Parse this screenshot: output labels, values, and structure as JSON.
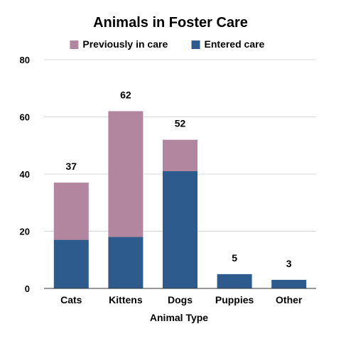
{
  "chart_data": {
    "type": "bar",
    "stacked": true,
    "title": "Animals in Foster Care",
    "xlabel": "Animal Type",
    "ylabel": "",
    "ylim": [
      0,
      80
    ],
    "yticks": [
      0,
      20,
      40,
      60,
      80
    ],
    "grid": true,
    "legend_position": "top",
    "categories": [
      "Cats",
      "Kittens",
      "Dogs",
      "Puppies",
      "Other"
    ],
    "series": [
      {
        "name": "Entered care",
        "color": "#2e5b8e",
        "values": [
          17,
          18,
          41,
          5,
          3
        ]
      },
      {
        "name": "Previously in care",
        "color": "#b3869f",
        "values": [
          20,
          44,
          11,
          0,
          0
        ]
      }
    ],
    "legend_order": [
      1,
      0
    ],
    "totals": [
      "37",
      "62",
      "52",
      "5",
      "3"
    ]
  }
}
